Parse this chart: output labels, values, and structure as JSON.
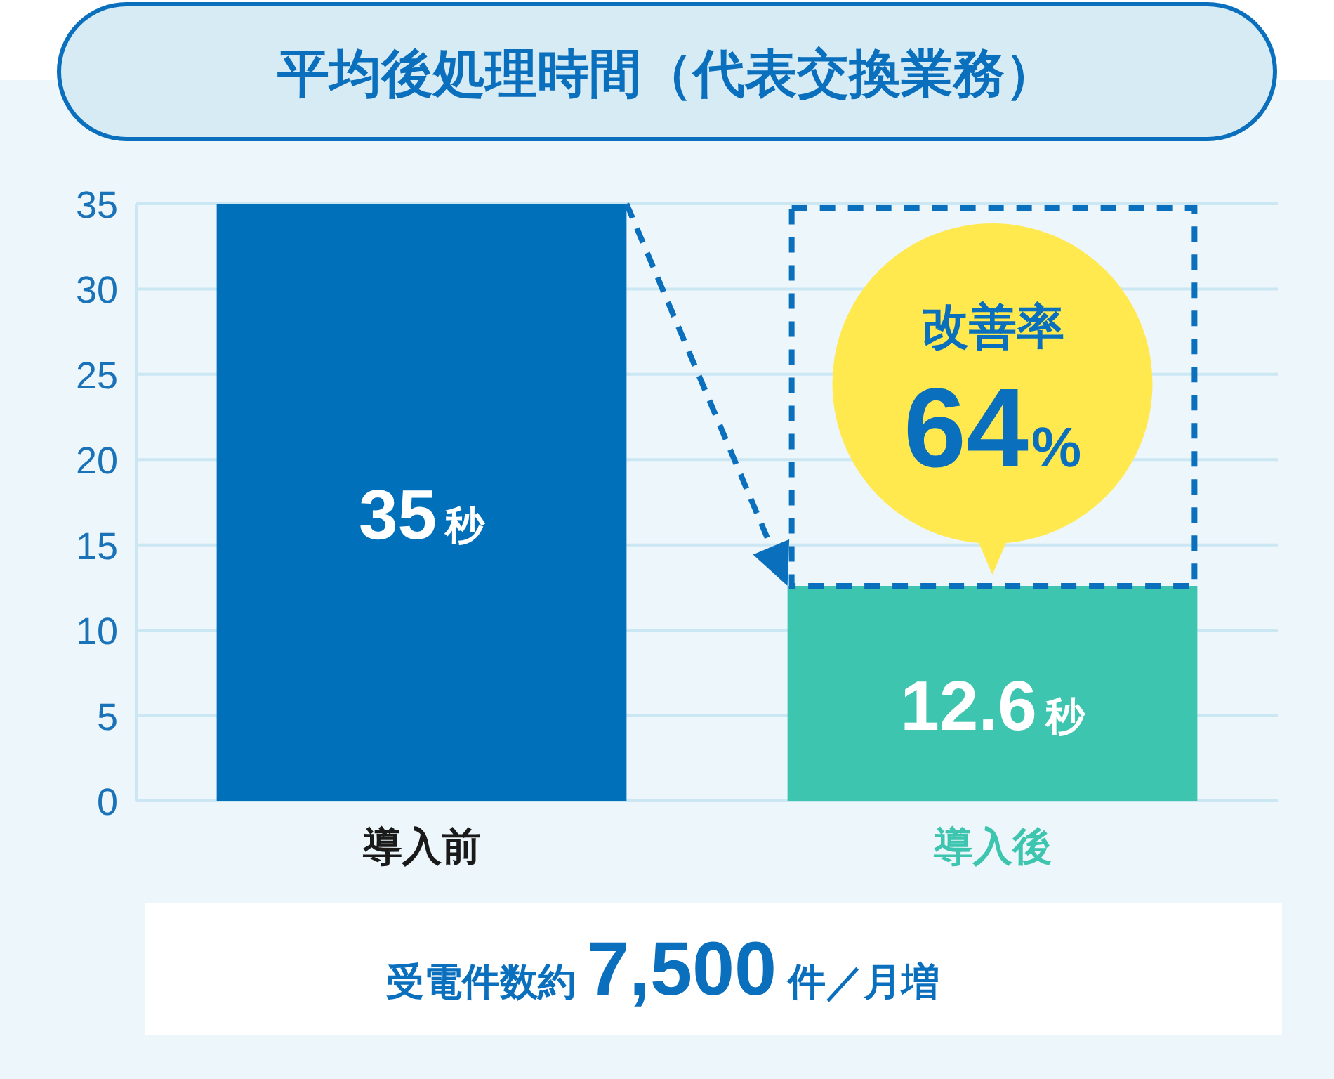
{
  "chart_data": {
    "type": "bar",
    "title": "平均後処理時間（代表交換業務）",
    "categories": [
      "導入前",
      "導入後"
    ],
    "values": [
      35,
      12.6
    ],
    "colors": [
      "#0070bb",
      "#3dc5b0"
    ],
    "value_labels": [
      "35秒",
      "12.6秒"
    ],
    "ylim": [
      0,
      35
    ],
    "yticks": [
      0,
      5,
      10,
      15,
      20,
      25,
      30,
      35
    ],
    "grid": "y",
    "annotations": [
      {
        "text": "改善率\n64%",
        "x": "導入後",
        "y": 12.6
      },
      "受電件数約7,500件／月増"
    ]
  }
}
